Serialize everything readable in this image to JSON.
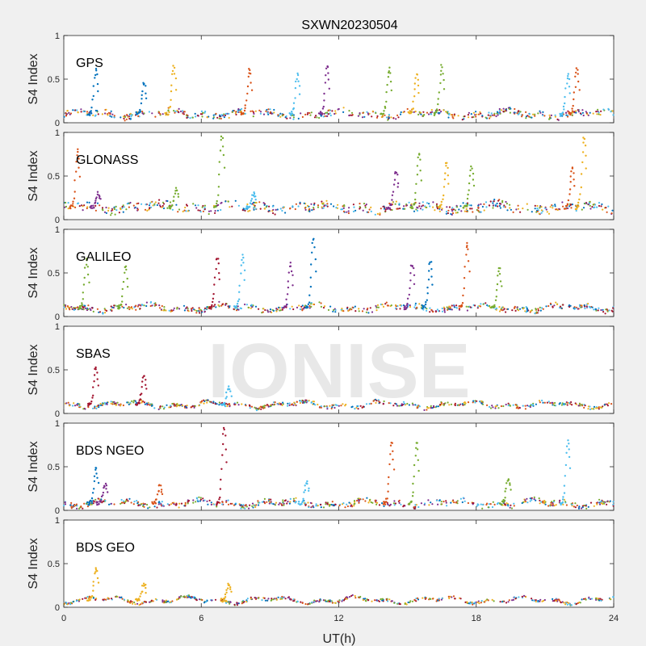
{
  "chart_data": {
    "type": "scatter",
    "title": "SXWN20230504",
    "xlabel": "UT(h)",
    "ylabel": "S4 Index",
    "xlim": [
      0,
      24
    ],
    "ylim": [
      0,
      1
    ],
    "xticks": [
      0,
      6,
      12,
      18,
      24
    ],
    "yticks": [
      0,
      0.5,
      1
    ],
    "xtick_labels": [
      "0",
      "6",
      "12",
      "18",
      "24"
    ],
    "ytick_labels": [
      "0",
      "0.5",
      "1"
    ],
    "watermark": "IONISE",
    "colors": [
      "#0072BD",
      "#D95319",
      "#EDB120",
      "#7E2F8E",
      "#77AC30",
      "#4DBEEE",
      "#A2142F"
    ],
    "panels": [
      {
        "label": "GPS",
        "background": 0.1,
        "noise": 0.035,
        "spikes": [
          {
            "x": 1.4,
            "peak": 0.6,
            "color": 0
          },
          {
            "x": 3.5,
            "peak": 0.45,
            "color": 0
          },
          {
            "x": 4.8,
            "peak": 0.65,
            "color": 2
          },
          {
            "x": 8.1,
            "peak": 0.62,
            "color": 1
          },
          {
            "x": 10.2,
            "peak": 0.55,
            "color": 5
          },
          {
            "x": 11.5,
            "peak": 0.65,
            "color": 3
          },
          {
            "x": 14.2,
            "peak": 0.62,
            "color": 4
          },
          {
            "x": 15.4,
            "peak": 0.55,
            "color": 2
          },
          {
            "x": 16.5,
            "peak": 0.65,
            "color": 4
          },
          {
            "x": 22.0,
            "peak": 0.55,
            "color": 5
          },
          {
            "x": 22.4,
            "peak": 0.62,
            "color": 1
          }
        ]
      },
      {
        "label": "GLONASS",
        "background": 0.14,
        "noise": 0.05,
        "spikes": [
          {
            "x": 0.6,
            "peak": 0.8,
            "color": 1
          },
          {
            "x": 1.5,
            "peak": 0.3,
            "color": 3
          },
          {
            "x": 4.9,
            "peak": 0.35,
            "color": 4
          },
          {
            "x": 6.9,
            "peak": 0.95,
            "color": 4
          },
          {
            "x": 8.3,
            "peak": 0.3,
            "color": 5
          },
          {
            "x": 14.5,
            "peak": 0.55,
            "color": 3
          },
          {
            "x": 15.5,
            "peak": 0.75,
            "color": 4
          },
          {
            "x": 16.7,
            "peak": 0.65,
            "color": 2
          },
          {
            "x": 17.8,
            "peak": 0.6,
            "color": 4
          },
          {
            "x": 22.2,
            "peak": 0.6,
            "color": 1
          },
          {
            "x": 22.7,
            "peak": 0.95,
            "color": 2
          }
        ]
      },
      {
        "label": "GALILEO",
        "background": 0.1,
        "noise": 0.03,
        "spikes": [
          {
            "x": 1.0,
            "peak": 0.65,
            "color": 4
          },
          {
            "x": 2.7,
            "peak": 0.58,
            "color": 4
          },
          {
            "x": 6.7,
            "peak": 0.68,
            "color": 6
          },
          {
            "x": 7.8,
            "peak": 0.7,
            "color": 5
          },
          {
            "x": 9.9,
            "peak": 0.6,
            "color": 3
          },
          {
            "x": 10.9,
            "peak": 0.9,
            "color": 0
          },
          {
            "x": 15.2,
            "peak": 0.6,
            "color": 3
          },
          {
            "x": 16.0,
            "peak": 0.62,
            "color": 0
          },
          {
            "x": 17.6,
            "peak": 0.85,
            "color": 1
          },
          {
            "x": 19.0,
            "peak": 0.55,
            "color": 4
          }
        ]
      },
      {
        "label": "SBAS",
        "background": 0.1,
        "noise": 0.02,
        "spikes": [
          {
            "x": 1.4,
            "peak": 0.52,
            "color": 6
          },
          {
            "x": 3.5,
            "peak": 0.42,
            "color": 6
          },
          {
            "x": 7.2,
            "peak": 0.3,
            "color": 5
          }
        ]
      },
      {
        "label": "BDS NGEO",
        "background": 0.08,
        "noise": 0.03,
        "spikes": [
          {
            "x": 1.4,
            "peak": 0.48,
            "color": 0
          },
          {
            "x": 1.8,
            "peak": 0.3,
            "color": 3
          },
          {
            "x": 4.2,
            "peak": 0.28,
            "color": 1
          },
          {
            "x": 7.0,
            "peak": 0.95,
            "color": 6
          },
          {
            "x": 10.6,
            "peak": 0.32,
            "color": 5
          },
          {
            "x": 14.3,
            "peak": 0.78,
            "color": 1
          },
          {
            "x": 15.4,
            "peak": 0.78,
            "color": 4
          },
          {
            "x": 19.4,
            "peak": 0.35,
            "color": 4
          },
          {
            "x": 22.0,
            "peak": 0.8,
            "color": 5
          }
        ]
      },
      {
        "label": "BDS GEO",
        "background": 0.08,
        "noise": 0.015,
        "spikes": [
          {
            "x": 1.4,
            "peak": 0.45,
            "color": 2
          },
          {
            "x": 3.5,
            "peak": 0.27,
            "color": 2
          },
          {
            "x": 7.2,
            "peak": 0.27,
            "color": 2
          }
        ]
      }
    ]
  }
}
